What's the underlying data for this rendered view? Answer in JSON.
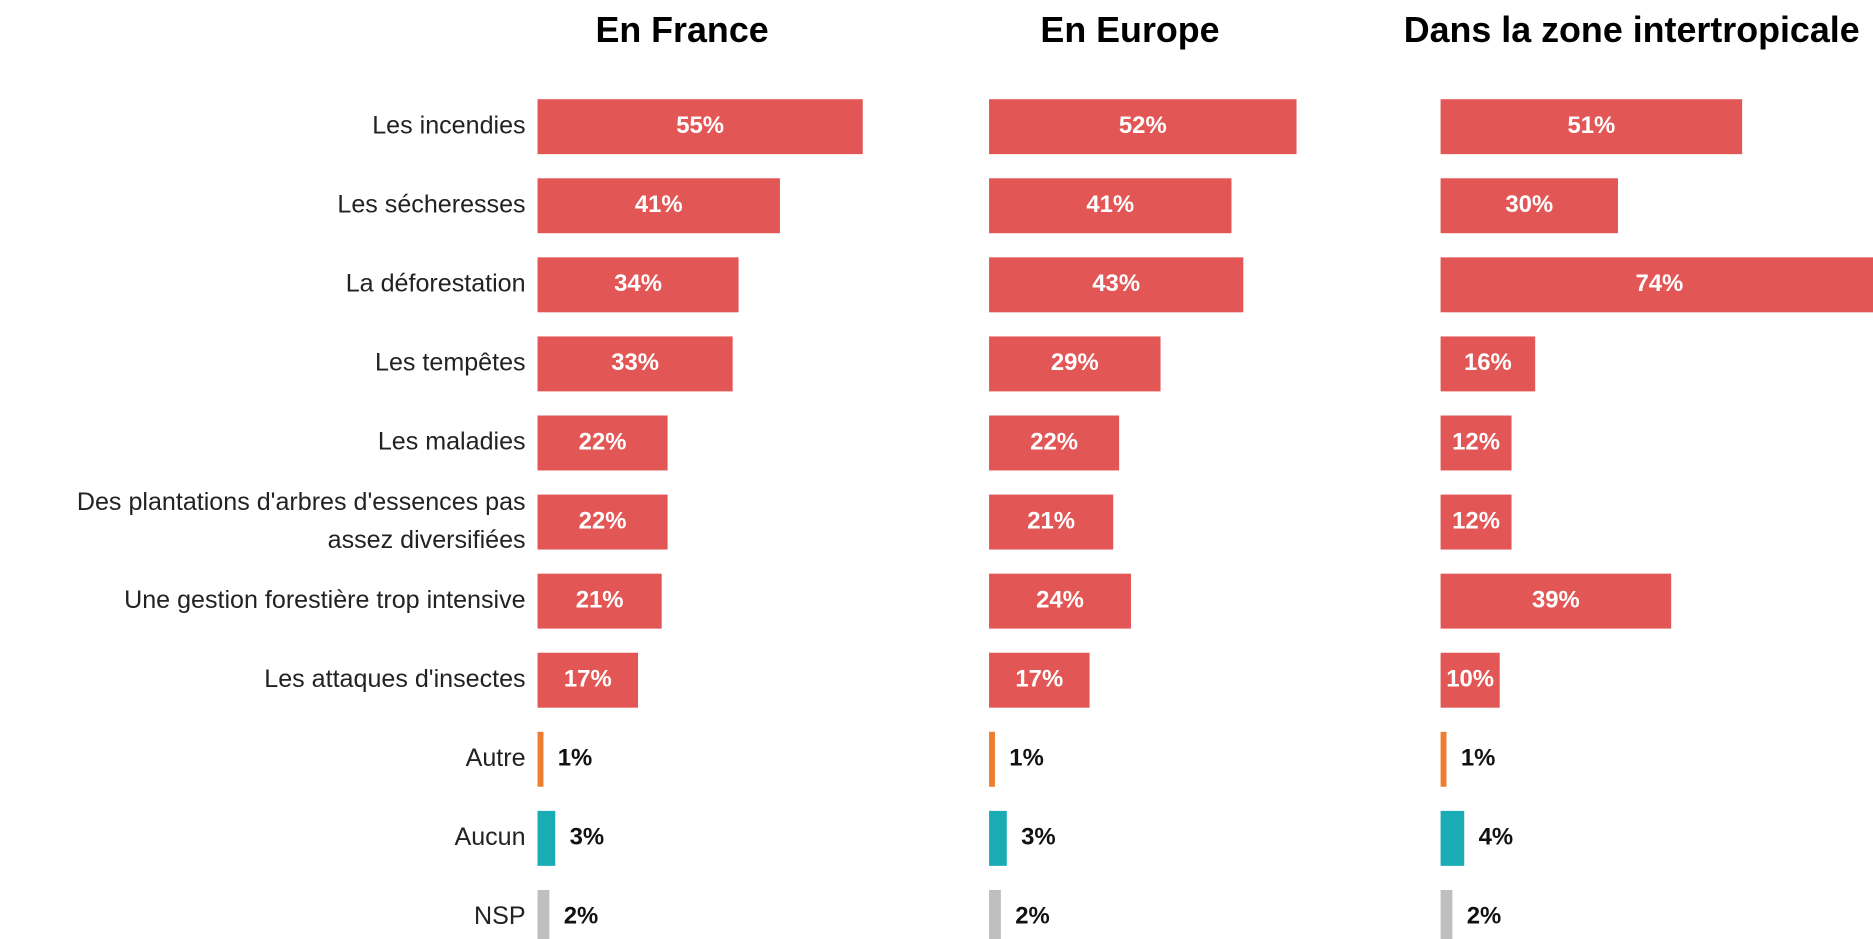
{
  "chart_data": [
    {
      "type": "bar",
      "title": "En France",
      "categories": [
        "Les incendies",
        "Les sécheresses",
        "La déforestation",
        "Les tempêtes",
        "Les maladies",
        "Des plantations d'arbres d'essences pas assez diversifiées",
        "Une gestion forestière trop intensive",
        "Les attaques d'insectes",
        "Autre",
        "Aucun",
        "NSP"
      ],
      "values": [
        55,
        41,
        34,
        33,
        22,
        22,
        21,
        17,
        1,
        3,
        2
      ],
      "value_labels": [
        "55%",
        "41%",
        "34%",
        "33%",
        "22%",
        "22%",
        "21%",
        "17%",
        "1%",
        "3%",
        "2%"
      ],
      "colors": [
        "#e35656",
        "#e35656",
        "#e35656",
        "#e35656",
        "#e35656",
        "#e35656",
        "#e35656",
        "#e35656",
        "#ed7d31",
        "#1aacb4",
        "#bfbfbf"
      ]
    },
    {
      "type": "bar",
      "title": "En Europe",
      "values": [
        52,
        41,
        43,
        29,
        22,
        21,
        24,
        17,
        1,
        3,
        2
      ],
      "value_labels": [
        "52%",
        "41%",
        "43%",
        "29%",
        "22%",
        "21%",
        "24%",
        "17%",
        "1%",
        "3%",
        "2%"
      ],
      "colors": [
        "#e35656",
        "#e35656",
        "#e35656",
        "#e35656",
        "#e35656",
        "#e35656",
        "#e35656",
        "#e35656",
        "#ed7d31",
        "#1aacb4",
        "#bfbfbf"
      ]
    },
    {
      "type": "bar",
      "title": "Dans la zone intertropicale",
      "values": [
        51,
        30,
        74,
        16,
        12,
        12,
        39,
        10,
        1,
        4,
        2
      ],
      "value_labels": [
        "51%",
        "30%",
        "74%",
        "16%",
        "12%",
        "12%",
        "39%",
        "10%",
        "1%",
        "4%",
        "2%"
      ],
      "colors": [
        "#e35656",
        "#e35656",
        "#e35656",
        "#e35656",
        "#e35656",
        "#e35656",
        "#e35656",
        "#e35656",
        "#ed7d31",
        "#1aacb4",
        "#bfbfbf"
      ]
    }
  ]
}
